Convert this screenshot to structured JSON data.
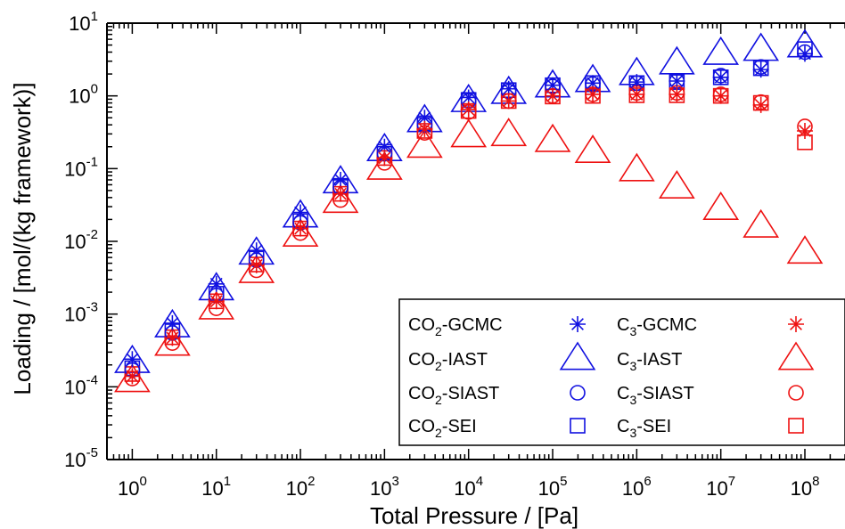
{
  "chart_data": {
    "type": "scatter",
    "xlabel": "Total Pressure / [Pa]",
    "ylabel": "Loading / [mol/(kg framework)]",
    "xscale": "log",
    "yscale": "log",
    "xlim": [
      0.5,
      300000000
    ],
    "ylim": [
      1e-05,
      10
    ],
    "x_ticks": [
      {
        "base": "10",
        "exp": "0",
        "value": 1
      },
      {
        "base": "10",
        "exp": "1",
        "value": 10
      },
      {
        "base": "10",
        "exp": "2",
        "value": 100
      },
      {
        "base": "10",
        "exp": "3",
        "value": 1000
      },
      {
        "base": "10",
        "exp": "4",
        "value": 10000
      },
      {
        "base": "10",
        "exp": "5",
        "value": 100000
      },
      {
        "base": "10",
        "exp": "6",
        "value": 1000000
      },
      {
        "base": "10",
        "exp": "7",
        "value": 10000000
      },
      {
        "base": "10",
        "exp": "8",
        "value": 100000000
      }
    ],
    "y_ticks": [
      {
        "base": "10",
        "exp": "1",
        "value": 10
      },
      {
        "base": "10",
        "exp": "0",
        "value": 1
      },
      {
        "base": "10",
        "exp": "-1",
        "value": 0.1
      },
      {
        "base": "10",
        "exp": "-2",
        "value": 0.01
      },
      {
        "base": "10",
        "exp": "-3",
        "value": 0.001
      },
      {
        "base": "10",
        "exp": "-4",
        "value": 0.0001
      },
      {
        "base": "10",
        "exp": "-5",
        "value": 1e-05
      }
    ],
    "legend_position": "bottom-right",
    "colors": {
      "co2": "#1010e0",
      "c3": "#ee1111"
    },
    "x": [
      1,
      3,
      10,
      30,
      100,
      300,
      1000,
      3000,
      10000,
      30000,
      100000,
      300000,
      1000000,
      3000000,
      10000000,
      30000000,
      100000000
    ],
    "series": [
      {
        "name_main": "CO",
        "name_sub": "2",
        "name_rest": "-GCMC",
        "color": "#1010e0",
        "marker": "star",
        "values": [
          0.00024,
          0.00075,
          0.0026,
          0.0075,
          0.025,
          0.07,
          0.2,
          0.5,
          0.95,
          1.25,
          1.4,
          1.5,
          1.55,
          1.6,
          1.8,
          2.3,
          3.8
        ]
      },
      {
        "name_main": "CO",
        "name_sub": "2",
        "name_rest": "-IAST",
        "color": "#1010e0",
        "marker": "triangle",
        "values": [
          0.00022,
          0.00068,
          0.0022,
          0.0068,
          0.022,
          0.065,
          0.18,
          0.45,
          0.85,
          1.1,
          1.35,
          1.6,
          2.0,
          2.8,
          3.8,
          4.3,
          4.8
        ]
      },
      {
        "name_main": "CO",
        "name_sub": "2",
        "name_rest": "-SIAST",
        "color": "#1010e0",
        "marker": "circle",
        "values": [
          0.00017,
          0.00055,
          0.0018,
          0.0055,
          0.018,
          0.055,
          0.16,
          0.4,
          0.85,
          1.15,
          1.35,
          1.45,
          1.5,
          1.6,
          1.9,
          2.5,
          4.0
        ]
      },
      {
        "name_main": "CO",
        "name_sub": "2",
        "name_rest": "-SEI",
        "color": "#1010e0",
        "marker": "square",
        "values": [
          0.00018,
          0.00058,
          0.0019,
          0.0058,
          0.019,
          0.058,
          0.17,
          0.42,
          0.88,
          1.2,
          1.4,
          1.5,
          1.5,
          1.55,
          1.8,
          2.4,
          4.4
        ]
      },
      {
        "name_main": "C",
        "name_sub": "3",
        "name_rest": "-GCMC",
        "color": "#ee1111",
        "marker": "star",
        "values": [
          0.00014,
          0.00047,
          0.0015,
          0.0047,
          0.015,
          0.045,
          0.14,
          0.35,
          0.65,
          0.85,
          1.0,
          1.05,
          1.05,
          1.05,
          1.0,
          0.75,
          0.33
        ]
      },
      {
        "name_main": "C",
        "name_sub": "3",
        "name_rest": "-IAST",
        "color": "#ee1111",
        "marker": "triangle",
        "values": [
          0.00012,
          0.00038,
          0.0012,
          0.0038,
          0.012,
          0.035,
          0.1,
          0.2,
          0.28,
          0.29,
          0.24,
          0.17,
          0.095,
          0.055,
          0.028,
          0.016,
          0.007
        ]
      },
      {
        "name_main": "C",
        "name_sub": "3",
        "name_rest": "-SIAST",
        "color": "#ee1111",
        "marker": "circle",
        "values": [
          0.00013,
          0.0004,
          0.0012,
          0.004,
          0.013,
          0.037,
          0.12,
          0.31,
          0.6,
          0.85,
          1.0,
          1.05,
          1.1,
          1.1,
          1.05,
          0.82,
          0.38
        ]
      },
      {
        "name_main": "C",
        "name_sub": "3",
        "name_rest": "-SEI",
        "color": "#ee1111",
        "marker": "square",
        "values": [
          0.00015,
          0.00048,
          0.0015,
          0.0048,
          0.015,
          0.045,
          0.14,
          0.33,
          0.62,
          0.85,
          0.98,
          1.0,
          1.02,
          1.02,
          1.0,
          0.8,
          0.23
        ]
      }
    ]
  }
}
